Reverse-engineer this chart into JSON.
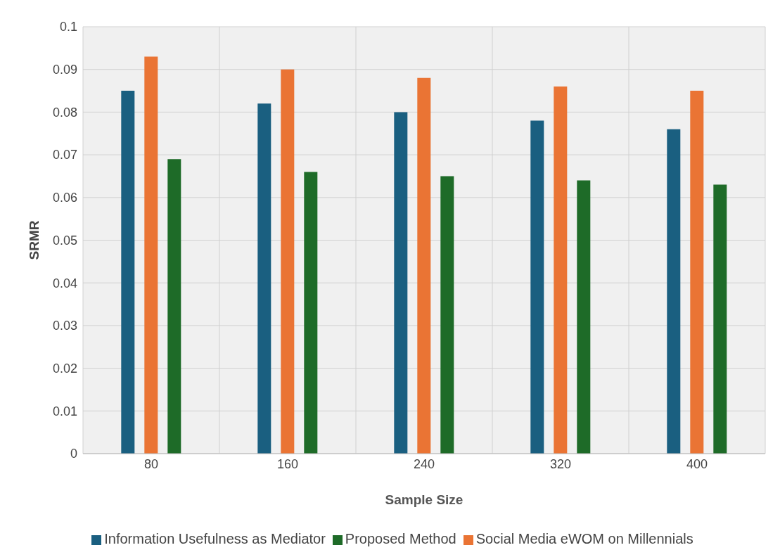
{
  "chart_data": {
    "type": "bar",
    "xlabel": "Sample Size",
    "ylabel": "SRMR",
    "categories": [
      "80",
      "160",
      "240",
      "320",
      "400"
    ],
    "series": [
      {
        "name": "Information Usefulness as Mediator",
        "color": "#1a5f80",
        "values": [
          0.085,
          0.082,
          0.08,
          0.078,
          0.076
        ]
      },
      {
        "name": "Social Media eWOM on Millennials",
        "color": "#ea7434",
        "values": [
          0.093,
          0.09,
          0.088,
          0.086,
          0.085
        ]
      },
      {
        "name": "Proposed Method",
        "color": "#1e6b28",
        "values": [
          0.069,
          0.066,
          0.065,
          0.064,
          0.063
        ]
      }
    ],
    "ylim": [
      0,
      0.1
    ],
    "yticks": [
      0,
      0.01,
      0.02,
      0.03,
      0.04,
      0.05,
      0.06,
      0.07,
      0.08,
      0.09,
      0.1
    ],
    "grid": true,
    "legend": "bottom"
  }
}
